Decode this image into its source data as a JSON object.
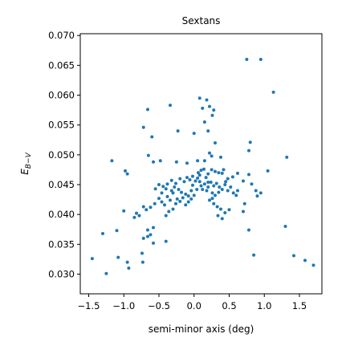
{
  "chart_data": {
    "type": "scatter",
    "title": "Sextans",
    "xlabel": "semi-minor axis (deg)",
    "ylabel": "E_{B-V}",
    "ylabel_main": "E",
    "ylabel_sub": "B−V",
    "xlim": [
      -1.62,
      1.82
    ],
    "ylim": [
      0.0267,
      0.0703
    ],
    "x_ticks": [
      -1.5,
      -1.0,
      -0.5,
      0.0,
      0.5,
      1.0,
      1.5
    ],
    "x_tick_labels": [
      "−1.5",
      "−1.0",
      "−0.5",
      "0.0",
      "0.5",
      "1.0",
      "1.5"
    ],
    "y_ticks": [
      0.03,
      0.035,
      0.04,
      0.045,
      0.05,
      0.055,
      0.06,
      0.065,
      0.07
    ],
    "y_tick_labels": [
      "0.030",
      "0.035",
      "0.040",
      "0.045",
      "0.050",
      "0.055",
      "0.060",
      "0.065",
      "0.070"
    ],
    "grid": false,
    "marker_color": "#1f77b4",
    "points": [
      [
        0.75,
        0.066
      ],
      [
        0.95,
        0.066
      ],
      [
        1.13,
        0.0605
      ],
      [
        0.08,
        0.0595
      ],
      [
        0.18,
        0.0592
      ],
      [
        0.22,
        0.0581
      ],
      [
        -0.34,
        0.0583
      ],
      [
        -0.66,
        0.0576
      ],
      [
        -0.72,
        0.0546
      ],
      [
        0.12,
        0.0578
      ],
      [
        0.28,
        0.0575
      ],
      [
        -0.6,
        0.053
      ],
      [
        -0.23,
        0.054
      ],
      [
        0.0,
        0.0536
      ],
      [
        0.15,
        0.0555
      ],
      [
        0.2,
        0.054
      ],
      [
        0.26,
        0.0566
      ],
      [
        0.8,
        0.0521
      ],
      [
        0.78,
        0.0507
      ],
      [
        -0.65,
        0.0499
      ],
      [
        -0.58,
        0.0488
      ],
      [
        -0.48,
        0.049
      ],
      [
        -0.25,
        0.0488
      ],
      [
        -0.1,
        0.0486
      ],
      [
        0.05,
        0.049
      ],
      [
        0.15,
        0.049
      ],
      [
        0.3,
        0.052
      ],
      [
        0.38,
        0.0496
      ],
      [
        0.25,
        0.0498
      ],
      [
        0.22,
        0.0503
      ],
      [
        -1.17,
        0.049
      ],
      [
        -0.98,
        0.0473
      ],
      [
        -0.95,
        0.0468
      ],
      [
        1.32,
        0.0496
      ],
      [
        1.05,
        0.0473
      ],
      [
        0.62,
        0.0469
      ],
      [
        0.7,
        0.0456
      ],
      [
        0.78,
        0.0467
      ],
      [
        0.82,
        0.0451
      ],
      [
        0.88,
        0.044
      ],
      [
        0.9,
        0.0431
      ],
      [
        0.95,
        0.0436
      ],
      [
        0.55,
        0.0463
      ],
      [
        0.48,
        0.046
      ],
      [
        0.4,
        0.0469
      ],
      [
        0.35,
        0.047
      ],
      [
        0.3,
        0.0472
      ],
      [
        0.25,
        0.0475
      ],
      [
        0.2,
        0.0468
      ],
      [
        0.17,
        0.0462
      ],
      [
        0.14,
        0.0476
      ],
      [
        0.1,
        0.0474
      ],
      [
        0.08,
        0.0466
      ],
      [
        0.05,
        0.0461
      ],
      [
        0.02,
        0.0456
      ],
      [
        -0.02,
        0.0464
      ],
      [
        -0.06,
        0.0458
      ],
      [
        -0.1,
        0.0462
      ],
      [
        -0.14,
        0.0455
      ],
      [
        -0.2,
        0.046
      ],
      [
        -0.26,
        0.0452
      ],
      [
        -0.32,
        0.0457
      ],
      [
        -0.38,
        0.0451
      ],
      [
        -0.44,
        0.0447
      ],
      [
        -0.5,
        0.045
      ],
      [
        -0.55,
        0.0443
      ],
      [
        -0.4,
        0.0443
      ],
      [
        -0.32,
        0.044
      ],
      [
        -0.28,
        0.0446
      ],
      [
        -0.22,
        0.0442
      ],
      [
        -0.18,
        0.0437
      ],
      [
        -0.12,
        0.0434
      ],
      [
        -0.08,
        0.0431
      ],
      [
        -0.04,
        0.044
      ],
      [
        0.04,
        0.0442
      ],
      [
        0.1,
        0.0448
      ],
      [
        0.15,
        0.0451
      ],
      [
        0.2,
        0.0446
      ],
      [
        0.24,
        0.0454
      ],
      [
        0.28,
        0.0448
      ],
      [
        0.32,
        0.0452
      ],
      [
        0.36,
        0.0446
      ],
      [
        0.4,
        0.0442
      ],
      [
        0.44,
        0.045
      ],
      [
        0.48,
        0.044
      ],
      [
        0.52,
        0.0446
      ],
      [
        0.56,
        0.0436
      ],
      [
        0.6,
        0.0432
      ],
      [
        0.35,
        0.0437
      ],
      [
        0.3,
        0.0432
      ],
      [
        0.26,
        0.0427
      ],
      [
        0.22,
        0.0424
      ],
      [
        0.28,
        0.0418
      ],
      [
        0.33,
        0.0413
      ],
      [
        0.38,
        0.0409
      ],
      [
        0.34,
        0.0398
      ],
      [
        0.4,
        0.0393
      ],
      [
        0.44,
        0.0403
      ],
      [
        0.5,
        0.0408
      ],
      [
        0.7,
        0.0405
      ],
      [
        0.72,
        0.0418
      ],
      [
        0.78,
        0.0374
      ],
      [
        -0.62,
        0.0412
      ],
      [
        -0.68,
        0.0408
      ],
      [
        -0.72,
        0.0413
      ],
      [
        -0.78,
        0.0398
      ],
      [
        -0.82,
        0.0402
      ],
      [
        -0.85,
        0.0395
      ],
      [
        -0.56,
        0.0418
      ],
      [
        -0.5,
        0.0427
      ],
      [
        -0.46,
        0.0421
      ],
      [
        -0.42,
        0.0416
      ],
      [
        -0.38,
        0.043
      ],
      [
        -0.34,
        0.0424
      ],
      [
        -0.3,
        0.0409
      ],
      [
        -0.26,
        0.0418
      ],
      [
        -0.24,
        0.0426
      ],
      [
        -0.2,
        0.0422
      ],
      [
        -0.16,
        0.0428
      ],
      [
        -0.12,
        0.0416
      ],
      [
        -0.08,
        0.0421
      ],
      [
        -0.04,
        0.0426
      ],
      [
        0.0,
        0.0432
      ],
      [
        -0.36,
        0.0405
      ],
      [
        -0.4,
        0.0398
      ],
      [
        -0.58,
        0.0378
      ],
      [
        -0.62,
        0.0366
      ],
      [
        -0.66,
        0.0374
      ],
      [
        -0.72,
        0.036
      ],
      [
        -0.4,
        0.0355
      ],
      [
        -0.58,
        0.0352
      ],
      [
        -0.66,
        0.0363
      ],
      [
        -1.0,
        0.0406
      ],
      [
        -1.1,
        0.0373
      ],
      [
        -1.3,
        0.0368
      ],
      [
        -0.74,
        0.0335
      ],
      [
        -0.73,
        0.032
      ],
      [
        -0.95,
        0.032
      ],
      [
        -1.08,
        0.0328
      ],
      [
        -1.25,
        0.0301
      ],
      [
        -1.45,
        0.0326
      ],
      [
        -0.93,
        0.031
      ],
      [
        0.85,
        0.0332
      ],
      [
        1.3,
        0.038
      ],
      [
        1.42,
        0.0331
      ],
      [
        1.58,
        0.0323
      ],
      [
        1.7,
        0.0315
      ],
      [
        0.2,
        0.0454
      ],
      [
        0.12,
        0.0442
      ],
      [
        -0.02,
        0.0449
      ],
      [
        0.06,
        0.047
      ],
      [
        0.45,
        0.0455
      ],
      [
        0.62,
        0.044
      ],
      [
        0.18,
        0.044
      ],
      [
        -0.46,
        0.0436
      ],
      [
        -0.3,
        0.0436
      ],
      [
        0.26,
        0.0436
      ],
      [
        0.08,
        0.0455
      ],
      [
        0.42,
        0.0475
      ]
    ]
  }
}
